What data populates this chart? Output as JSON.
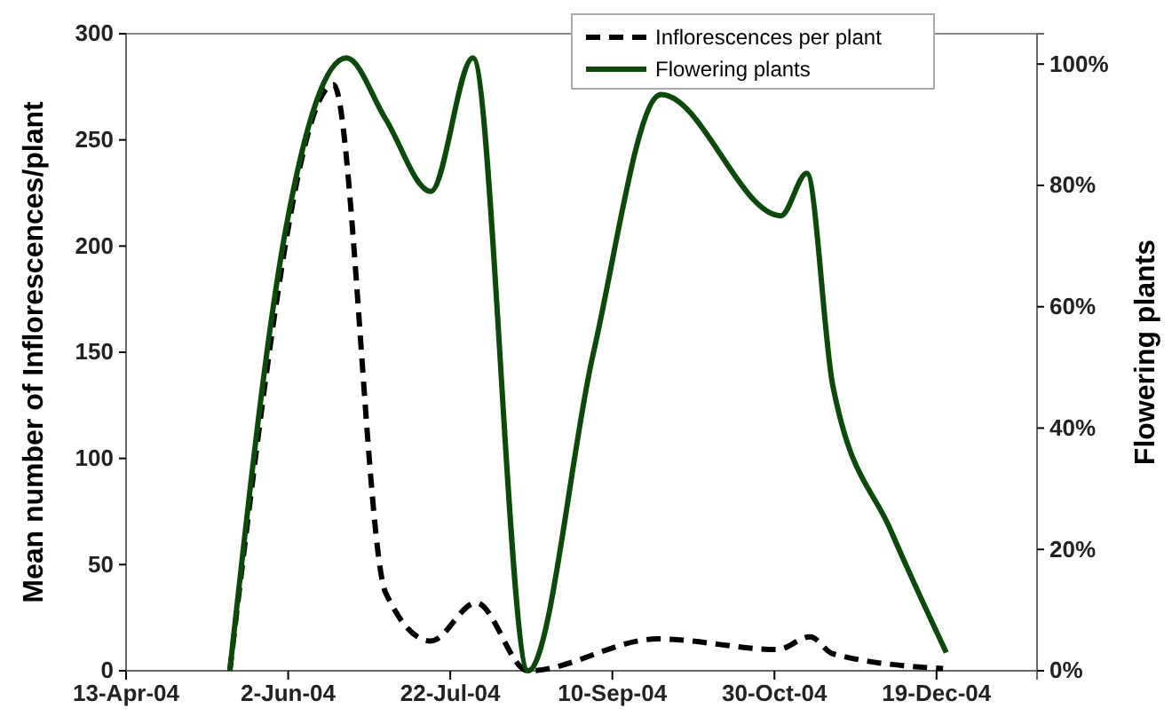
{
  "chart_data": {
    "type": "line",
    "xlabel": null,
    "ylabel": "Mean number of Inflorescences/plant",
    "y2label": "Flowering plants",
    "xlim": [
      "2004-04-13",
      "2005-01-19"
    ],
    "xticks": [
      {
        "value": "2004-04-13",
        "label": "13-Apr-04"
      },
      {
        "value": "2004-06-02",
        "label": "2-Jun-04"
      },
      {
        "value": "2004-07-22",
        "label": "22-Jul-04"
      },
      {
        "value": "2004-09-10",
        "label": "10-Sep-04"
      },
      {
        "value": "2004-10-30",
        "label": "30-Oct-04"
      },
      {
        "value": "2004-12-19",
        "label": "19-Dec-04"
      }
    ],
    "ylim": [
      0,
      300
    ],
    "yticks": [
      0,
      50,
      100,
      150,
      200,
      250,
      300
    ],
    "y2lim": [
      0,
      105
    ],
    "y2ticks": [
      {
        "value": 0,
        "label": "0%"
      },
      {
        "value": 20,
        "label": "20%"
      },
      {
        "value": 40,
        "label": "40%"
      },
      {
        "value": 60,
        "label": "60%"
      },
      {
        "value": 80,
        "label": "80%"
      },
      {
        "value": 100,
        "label": "100%"
      }
    ],
    "legend": "top",
    "grid": false,
    "marker": "none",
    "series": [
      {
        "name": "Inflorescences per plant",
        "color": "#000000",
        "line_style": "dashed",
        "x": [
          "2004-05-15",
          "2004-06-16",
          "2004-07-02",
          "2004-07-16",
          "2004-07-30",
          "2004-08-15",
          "2004-09-24",
          "2004-10-31",
          "2004-11-10",
          "2004-11-17",
          "2004-12-21"
        ],
        "values": [
          0,
          276,
          37,
          14,
          32,
          0,
          15,
          10,
          16,
          8,
          1
        ]
      },
      {
        "name": "Flowering plants",
        "color": "#0b4a0b",
        "line_style": "solid",
        "axis": "y2",
        "x": [
          "2004-05-15",
          "2004-06-01",
          "2004-06-20",
          "2004-07-02",
          "2004-07-16",
          "2004-07-29",
          "2004-08-15",
          "2004-09-04",
          "2004-09-25",
          "2004-11-01",
          "2004-11-09",
          "2004-11-17",
          "2004-12-05",
          "2004-12-22"
        ],
        "values": [
          0,
          72,
          101,
          91,
          79,
          101,
          0,
          52,
          95,
          75,
          82,
          47,
          23,
          3
        ]
      }
    ]
  }
}
